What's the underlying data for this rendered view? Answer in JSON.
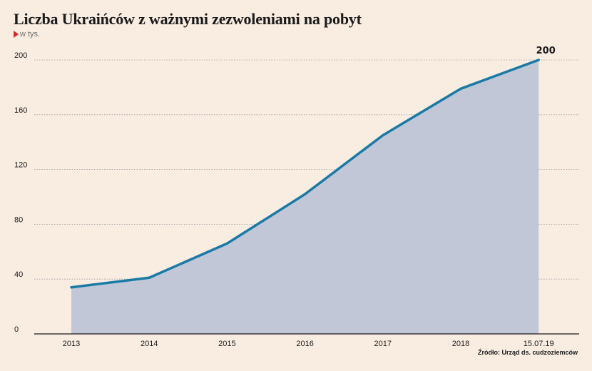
{
  "title": "Liczba Ukraińców z ważnymi zezwoleniami na pobyt",
  "subtitle": "w tys.",
  "source": "Źródło: Urząd ds. cudzoziemców",
  "colors": {
    "background": "#f9ede2",
    "line": "#1a7aa6",
    "area": "#c1c7d6",
    "grid": "#9a9a9a",
    "marker": "#e0232b"
  },
  "chart_data": {
    "type": "area",
    "title": "Liczba Ukraińców z ważnymi zezwoleniami na pobyt",
    "ylabel": "w tys.",
    "xlabel": "",
    "categories": [
      "2013",
      "2014",
      "2015",
      "2016",
      "2017",
      "2018",
      "15.07.19"
    ],
    "series": [
      {
        "values": [
          34,
          41,
          66,
          102,
          145,
          179,
          200
        ]
      }
    ],
    "y_ticks": [
      0,
      40,
      80,
      120,
      160,
      200
    ],
    "ylim": [
      0,
      200
    ],
    "grid": true,
    "annotations": [
      {
        "category": "15.07.19",
        "text": "200"
      }
    ]
  }
}
